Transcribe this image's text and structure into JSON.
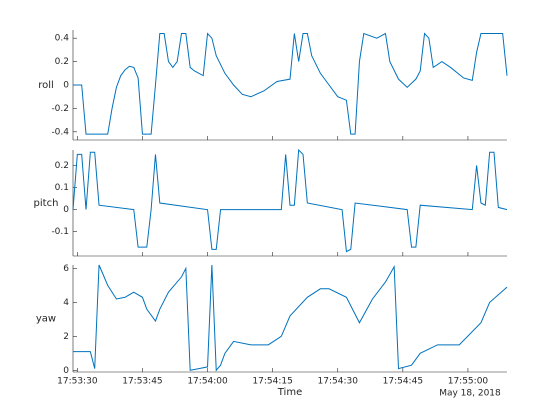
{
  "chart_data": [
    {
      "type": "line",
      "ylabel": "roll",
      "x": [
        "17:53:29",
        "17:53:31",
        "17:53:32",
        "17:53:37",
        "17:53:38",
        "17:53:39",
        "17:53:40",
        "17:53:41",
        "17:53:42",
        "17:53:43",
        "17:53:44",
        "17:53:45",
        "17:53:47",
        "17:53:48",
        "17:53:49",
        "17:53:50",
        "17:53:51",
        "17:53:52",
        "17:53:53",
        "17:53:54",
        "17:53:55",
        "17:53:56",
        "17:53:57",
        "17:53:59",
        "17:54:00",
        "17:54:01",
        "17:54:02",
        "17:54:04",
        "17:54:06",
        "17:54:08",
        "17:54:10",
        "17:54:13",
        "17:54:16",
        "17:54:19",
        "17:54:20",
        "17:54:21",
        "17:54:22",
        "17:54:23",
        "17:54:24",
        "17:54:26",
        "17:54:28",
        "17:54:30",
        "17:54:32",
        "17:54:33",
        "17:54:34",
        "17:54:35",
        "17:54:36",
        "17:54:39",
        "17:54:41",
        "17:54:42",
        "17:54:44",
        "17:54:46",
        "17:54:48",
        "17:54:49",
        "17:54:50",
        "17:54:51",
        "17:54:52",
        "17:54:54",
        "17:54:56",
        "17:54:59",
        "17:55:01",
        "17:55:02",
        "17:55:03",
        "17:55:08",
        "17:55:09"
      ],
      "series": [
        {
          "name": "roll",
          "color": "#0072bd",
          "values": [
            0,
            0,
            -0.42,
            -0.42,
            -0.2,
            -0.02,
            0.08,
            0.13,
            0.16,
            0.15,
            0.06,
            -0.42,
            -0.42,
            0.0,
            0.44,
            0.44,
            0.2,
            0.15,
            0.2,
            0.44,
            0.44,
            0.15,
            0.12,
            0.08,
            0.44,
            0.4,
            0.25,
            0.1,
            0.0,
            -0.08,
            -0.1,
            -0.05,
            0.03,
            0.05,
            0.44,
            0.2,
            0.44,
            0.44,
            0.25,
            0.1,
            0.0,
            -0.1,
            -0.13,
            -0.42,
            -0.42,
            0.2,
            0.44,
            0.4,
            0.44,
            0.2,
            0.05,
            -0.02,
            0.05,
            0.12,
            0.44,
            0.4,
            0.15,
            0.2,
            0.15,
            0.06,
            0.04,
            0.28,
            0.44,
            0.44,
            0.08
          ]
        }
      ],
      "xlim": [
        "17:53:29",
        "17:55:09"
      ],
      "ylim": [
        -0.47,
        0.47
      ],
      "yticks": [
        -0.4,
        -0.2,
        0,
        0.2,
        0.4
      ]
    },
    {
      "type": "line",
      "ylabel": "pitch",
      "x": [
        "17:53:29",
        "17:53:30",
        "17:53:31",
        "17:53:32",
        "17:53:33",
        "17:53:34",
        "17:53:35",
        "17:53:43",
        "17:53:44",
        "17:53:46",
        "17:53:47",
        "17:53:48",
        "17:53:49",
        "17:54:00",
        "17:54:01",
        "17:54:02",
        "17:54:03",
        "17:54:17",
        "17:54:18",
        "17:54:19",
        "17:54:20",
        "17:54:21",
        "17:54:22",
        "17:54:23",
        "17:54:31",
        "17:54:32",
        "17:54:33",
        "17:54:34",
        "17:54:46",
        "17:54:47",
        "17:54:48",
        "17:54:49",
        "17:55:01",
        "17:55:02",
        "17:55:03",
        "17:55:04",
        "17:55:05",
        "17:55:06",
        "17:55:07",
        "17:55:09"
      ],
      "series": [
        {
          "name": "pitch",
          "color": "#0072bd",
          "values": [
            0,
            0.25,
            0.25,
            0,
            0.26,
            0.26,
            0.02,
            0,
            -0.17,
            -0.17,
            0,
            0.25,
            0.03,
            0,
            -0.18,
            -0.18,
            0,
            0,
            0.25,
            0.02,
            0.02,
            0.27,
            0.25,
            0.03,
            0,
            -0.19,
            -0.18,
            0.03,
            0,
            -0.17,
            -0.17,
            0.02,
            0,
            0.2,
            0.03,
            0.02,
            0.26,
            0.26,
            0.01,
            0
          ]
        }
      ],
      "xlim": [
        "17:53:29",
        "17:55:09"
      ],
      "ylim": [
        -0.21,
        0.27
      ],
      "yticks": [
        -0.1,
        0,
        0.1,
        0.2
      ]
    },
    {
      "type": "line",
      "ylabel": "yaw",
      "xlabel": "Time",
      "date_label": "May 18, 2018",
      "x": [
        "17:53:29",
        "17:53:33",
        "17:53:34",
        "17:53:35",
        "17:53:37",
        "17:53:39",
        "17:53:41",
        "17:53:43",
        "17:53:45",
        "17:53:46",
        "17:53:48",
        "17:53:49",
        "17:53:51",
        "17:53:54",
        "17:53:55",
        "17:53:56",
        "17:53:58",
        "17:54:00",
        "17:54:01",
        "17:54:02",
        "17:54:03",
        "17:54:04",
        "17:54:06",
        "17:54:10",
        "17:54:14",
        "17:54:17",
        "17:54:19",
        "17:54:23",
        "17:54:26",
        "17:54:28",
        "17:54:32",
        "17:54:35",
        "17:54:38",
        "17:54:41",
        "17:54:43",
        "17:54:44",
        "17:54:47",
        "17:54:49",
        "17:54:53",
        "17:54:58",
        "17:55:03",
        "17:55:05",
        "17:55:09"
      ],
      "series": [
        {
          "name": "yaw",
          "color": "#0072bd",
          "values": [
            1.1,
            1.1,
            0.1,
            6.2,
            5.0,
            4.2,
            4.3,
            4.6,
            4.3,
            3.6,
            2.9,
            3.6,
            4.6,
            5.5,
            6.0,
            0.0,
            0.1,
            0.2,
            6.2,
            0.0,
            0.3,
            1.0,
            1.7,
            1.5,
            1.5,
            2.0,
            3.2,
            4.3,
            4.8,
            4.8,
            4.3,
            2.8,
            4.2,
            5.2,
            6.1,
            0.1,
            0.3,
            1.0,
            1.5,
            1.5,
            2.8,
            4.0,
            4.9
          ]
        }
      ],
      "xlim": [
        "17:53:29",
        "17:55:09"
      ],
      "ylim": [
        -0.1,
        6.2
      ],
      "yticks": [
        0,
        2,
        4,
        6
      ],
      "xticks": [
        "17:53:30",
        "17:53:45",
        "17:54:00",
        "17:54:15",
        "17:54:30",
        "17:54:45",
        "17:55:00"
      ]
    }
  ]
}
